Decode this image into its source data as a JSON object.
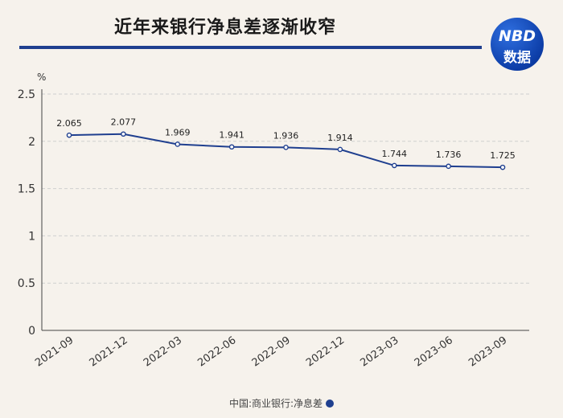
{
  "header": {
    "title": "近年来银行净息差逐渐收窄",
    "badge_line1": "NBD",
    "badge_line2": "数据"
  },
  "legend": {
    "label": "中国:商业银行:净息差"
  },
  "colors": {
    "line": "#1f3f8f",
    "background": "#f6f2ec",
    "grid": "#cfcfcf"
  },
  "chart_data": {
    "type": "line",
    "title": "近年来银行净息差逐渐收窄",
    "ylabel": "%",
    "xlabel": "",
    "categories": [
      "2021-09",
      "2021-12",
      "2022-03",
      "2022-06",
      "2022-09",
      "2022-12",
      "2023-03",
      "2023-06",
      "2023-09"
    ],
    "series": [
      {
        "name": "中国:商业银行:净息差",
        "values": [
          2.065,
          2.077,
          1.969,
          1.941,
          1.936,
          1.914,
          1.744,
          1.736,
          1.725
        ]
      }
    ],
    "yticks": [
      0,
      0.5,
      1,
      1.5,
      2,
      2.5
    ],
    "ytick_labels": [
      "0",
      "0.5",
      "1",
      "1.5",
      "2",
      "2.5"
    ],
    "data_labels": [
      "2.065",
      "2.077",
      "1.969",
      "1.941",
      "1.936",
      "1.914",
      "1.744",
      "1.736",
      "1.725"
    ],
    "ylim": [
      0,
      2.5
    ],
    "grid": true,
    "legend_position": "bottom-center"
  }
}
